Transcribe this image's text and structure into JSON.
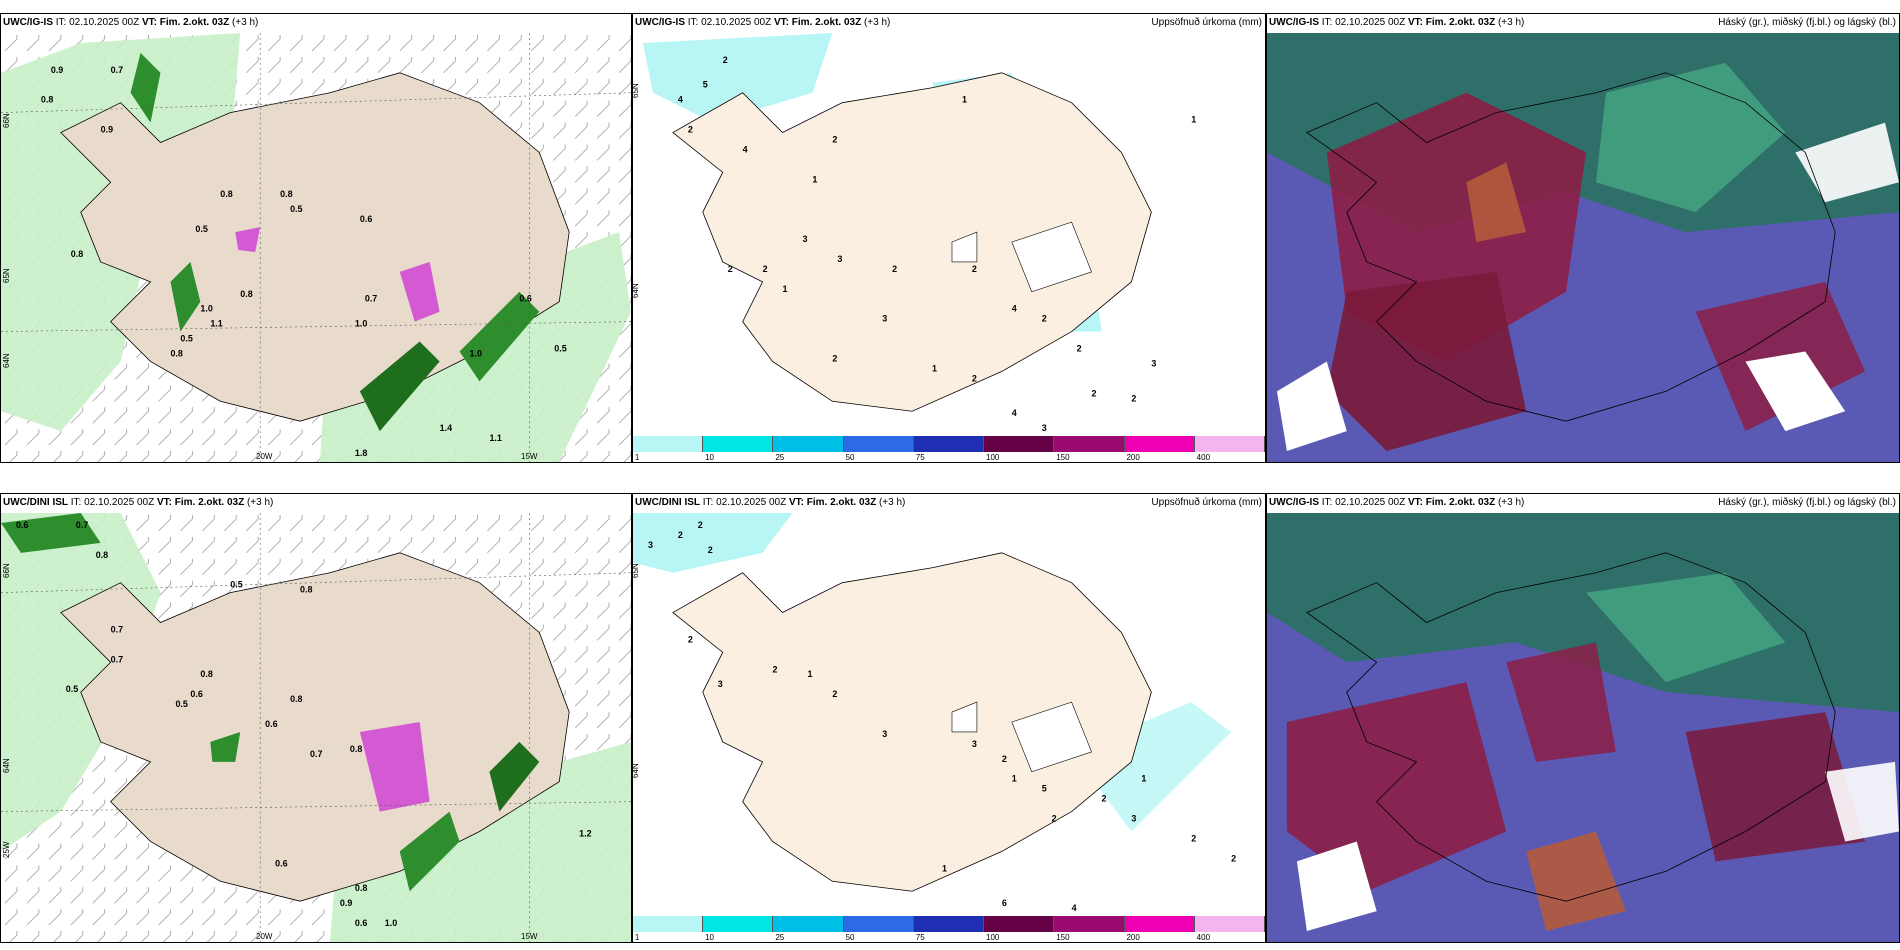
{
  "panels": [
    {
      "header_prefix": "UWC/IG-IS",
      "header_it": " IT: 02.10.2025 00Z ",
      "header_vt": "VT: Fim. 2.okt. 03Z",
      "header_suffix": " (+3 h)",
      "right": ""
    },
    {
      "header_prefix": "UWC/IG-IS",
      "header_it": " IT: 02.10.2025 00Z ",
      "header_vt": "VT: Fim. 2.okt. 03Z",
      "header_suffix": " (+3 h)",
      "right": "Uppsöfnuð úrkoma (mm)"
    },
    {
      "header_prefix": "UWC/IG-IS",
      "header_it": " IT: 02.10.2025 00Z ",
      "header_vt": "VT: Fim. 2.okt. 03Z",
      "header_suffix": " (+3 h)",
      "right": "Háský (gr.), miðský (fj.bl.) og lágský (bl.)"
    },
    {
      "header_prefix": "UWC/DINI ISL",
      "header_it": " IT: 02.10.2025 00Z ",
      "header_vt": "VT: Fim. 2.okt. 03Z",
      "header_suffix": " (+3 h)",
      "right": ""
    },
    {
      "header_prefix": "UWC/DINI ISL",
      "header_it": " IT: 02.10.2025 00Z ",
      "header_vt": "VT: Fim. 2.okt. 03Z",
      "header_suffix": " (+3 h)",
      "right": "Uppsöfnuð úrkoma (mm)"
    },
    {
      "header_prefix": "UWC/IG-IS",
      "header_it": " IT: 02.10.2025 00Z ",
      "header_vt": "VT: Fim. 2.okt. 03Z",
      "header_suffix": " (+3 h)",
      "right": "Háský (gr.), miðský (fj.bl.) og lágský (bl.)"
    }
  ],
  "axis": {
    "lat66": "66N",
    "lat64": "64N",
    "lat65": "65N",
    "lon20": "20W",
    "lon15": "15W",
    "lon25": "25W"
  },
  "colorbar": {
    "colors": [
      "#b8f6f6",
      "#00e6e6",
      "#00bfe6",
      "#2d6be6",
      "#1e2fb4",
      "#640046",
      "#9b0a6e",
      "#f000b4",
      "#f5b4f0"
    ],
    "labels": [
      "1",
      "10",
      "25",
      "50",
      "75",
      "100",
      "150",
      "200",
      "400"
    ]
  },
  "values": {
    "p1": [
      "0.9",
      "0.7",
      "0.8",
      "0.9",
      "0.8",
      "0.5",
      "0.8",
      "0.6",
      "0.8",
      "0.5",
      "0.8",
      "1.0",
      "0.5",
      "0.8",
      "1.0",
      "0.7",
      "1.1",
      "1.0",
      "0.5",
      "0.6",
      "1.8",
      "1.1",
      "1.4"
    ],
    "p2": [
      "2",
      "5",
      "4",
      "2",
      "4",
      "1",
      "3",
      "2",
      "2",
      "1",
      "3",
      "2",
      "2",
      "4",
      "2",
      "3",
      "2",
      "1",
      "2",
      "3",
      "2",
      "2",
      "3",
      "4",
      "2",
      "2",
      "1",
      "1"
    ],
    "p4": [
      "0.6",
      "0.7",
      "0.8",
      "0.7",
      "0.7",
      "0.5",
      "0.8",
      "0.5",
      "0.6",
      "0.8",
      "0.6",
      "0.8",
      "0.7",
      "0.8",
      "0.5",
      "0.6",
      "0.8",
      "0.9",
      "0.6",
      "1.0",
      "1.2"
    ],
    "p5": [
      "3",
      "2",
      "2",
      "2",
      "2",
      "1",
      "3",
      "2",
      "2",
      "3",
      "3",
      "2",
      "1",
      "5",
      "2",
      "2",
      "3",
      "2",
      "1",
      "4",
      "6",
      "1",
      "2"
    ]
  }
}
